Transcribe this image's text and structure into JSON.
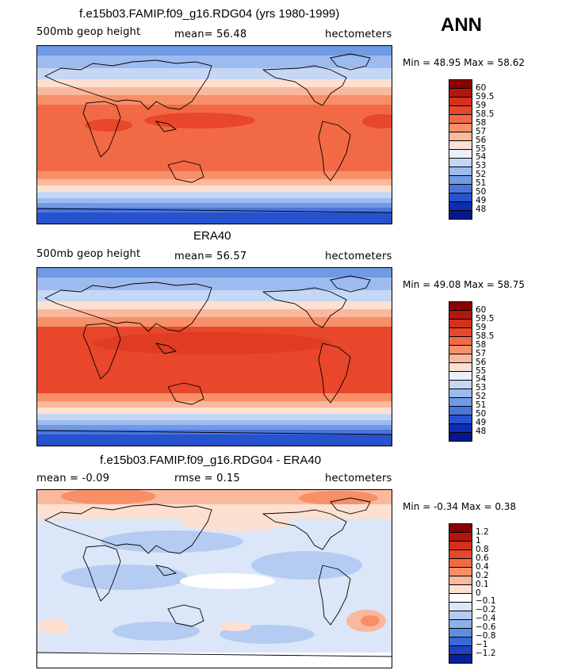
{
  "season": "ANN",
  "panels": [
    {
      "title": "f.e15b03.FAMIP.f09_g16.RDG04 (yrs 1980-1999)",
      "left_label": "500mb geop height",
      "mid_label": "mean=  56.48",
      "units": "hectometers",
      "minmax": "Min =  48.95 Max =  58.62",
      "colorbar": {
        "ticks": [
          "60",
          "59.5",
          "59",
          "58.5",
          "58",
          "57",
          "56",
          "55",
          "54",
          "53",
          "52",
          "51",
          "50",
          "49",
          "48"
        ],
        "colors": [
          "#8b0000",
          "#b3160f",
          "#d4301c",
          "#e8472c",
          "#f26a45",
          "#f78f68",
          "#fab89c",
          "#fde0d2",
          "#e9f0fb",
          "#c4d7f5",
          "#9dbbef",
          "#7099e6",
          "#4a76dc",
          "#2752cd",
          "#0c2cb8",
          "#061890"
        ]
      }
    },
    {
      "title": "ERA40",
      "left_label": "500mb geop height",
      "mid_label": "mean=  56.57",
      "units": "hectometers",
      "minmax": "Min =  49.08 Max =  58.75",
      "colorbar": {
        "ticks": [
          "60",
          "59.5",
          "59",
          "58.5",
          "58",
          "57",
          "56",
          "55",
          "54",
          "53",
          "52",
          "51",
          "50",
          "49",
          "48"
        ],
        "colors": [
          "#8b0000",
          "#b3160f",
          "#d4301c",
          "#e8472c",
          "#f26a45",
          "#f78f68",
          "#fab89c",
          "#fde0d2",
          "#e9f0fb",
          "#c4d7f5",
          "#9dbbef",
          "#7099e6",
          "#4a76dc",
          "#2752cd",
          "#0c2cb8",
          "#061890"
        ]
      }
    },
    {
      "title": "f.e15b03.FAMIP.f09_g16.RDG04 - ERA40",
      "left_label": "mean =  -0.09",
      "mid_label": "rmse =   0.15",
      "units": "hectometers",
      "minmax": "Min =  -0.34 Max =   0.38",
      "colorbar": {
        "ticks": [
          "1.2",
          "1",
          "0.8",
          "0.6",
          "0.4",
          "0.2",
          "0.1",
          "0",
          "-0.1",
          "-0.2",
          "-0.4",
          "-0.6",
          "-0.8",
          "-1",
          "-1.2"
        ],
        "colors": [
          "#8b0000",
          "#b3160f",
          "#d4301c",
          "#e8472c",
          "#f26a45",
          "#f78f68",
          "#fab89c",
          "#fde0d2",
          "#ffffff",
          "#dbe6f8",
          "#b5ccf2",
          "#8bb0ea",
          "#5f8ee1",
          "#3a68d6",
          "#1c43c4",
          "#08209a"
        ]
      }
    }
  ]
}
